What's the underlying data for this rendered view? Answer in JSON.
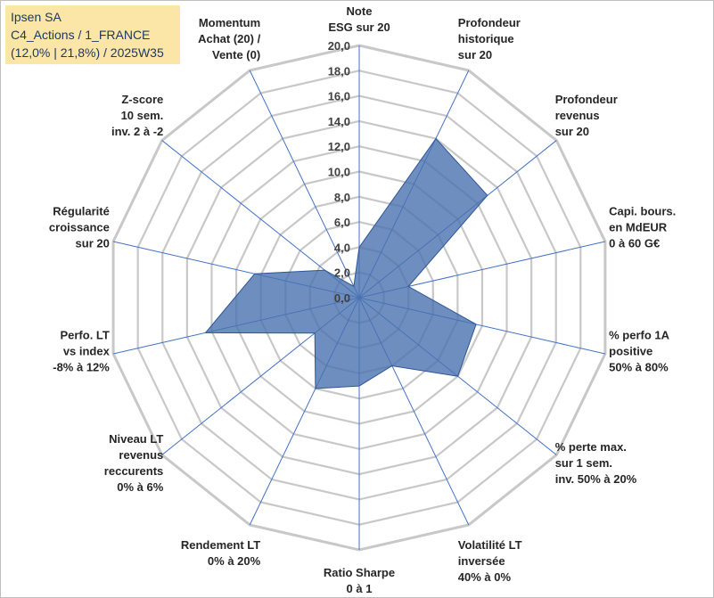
{
  "info_box": {
    "line1": "Ipsen SA",
    "line2": "C4_Actions / 1_FRANCE",
    "line3": "(12,0% | 21,8%) / 2025W35"
  },
  "chart_data": {
    "type": "radar",
    "title": "",
    "rlim": [
      0,
      20
    ],
    "r_ticks": [
      "0,0",
      "2,0",
      "4,0",
      "6,0",
      "8,0",
      "10,0",
      "12,0",
      "14,0",
      "16,0",
      "18,0",
      "20,0"
    ],
    "grid": true,
    "series_color": "#4a72b0",
    "grid_color": "#c8c8c8",
    "axis_line_color": "#4472c4",
    "categories": [
      [
        "Note",
        "ESG sur 20"
      ],
      [
        "Profondeur",
        "historique",
        "sur 20"
      ],
      [
        "Profondeur",
        "revenus",
        "sur 20"
      ],
      [
        "Capi. bours.",
        "en MdEUR",
        "0 à 60 G€"
      ],
      [
        "% perfo 1A",
        "positive",
        "50% à 80%"
      ],
      [
        "% perte max.",
        "sur 1 sem.",
        "inv. 50% à 20%"
      ],
      [
        "Volatilité LT",
        "inversée",
        "40% à 0%"
      ],
      [
        "Ratio Sharpe",
        "0 à 1"
      ],
      [
        "Rendement LT",
        "0% à 20%"
      ],
      [
        "Niveau LT",
        "revenus",
        "reccurents",
        "0% à 6%"
      ],
      [
        "Perfo. LT",
        "vs index",
        "-8% à 12%"
      ],
      [
        "Régularité",
        "croissance",
        "sur 20"
      ],
      [
        "Z-score",
        "10 sem.",
        "inv. 2 à -2"
      ],
      [
        "Momentum",
        "Achat (20) /",
        "Vente (0)"
      ]
    ],
    "values": [
      4.0,
      14.0,
      13.0,
      4.0,
      9.5,
      10.0,
      6.0,
      7.0,
      8.0,
      4.5,
      12.5,
      8.5,
      3.5,
      1.0
    ]
  }
}
